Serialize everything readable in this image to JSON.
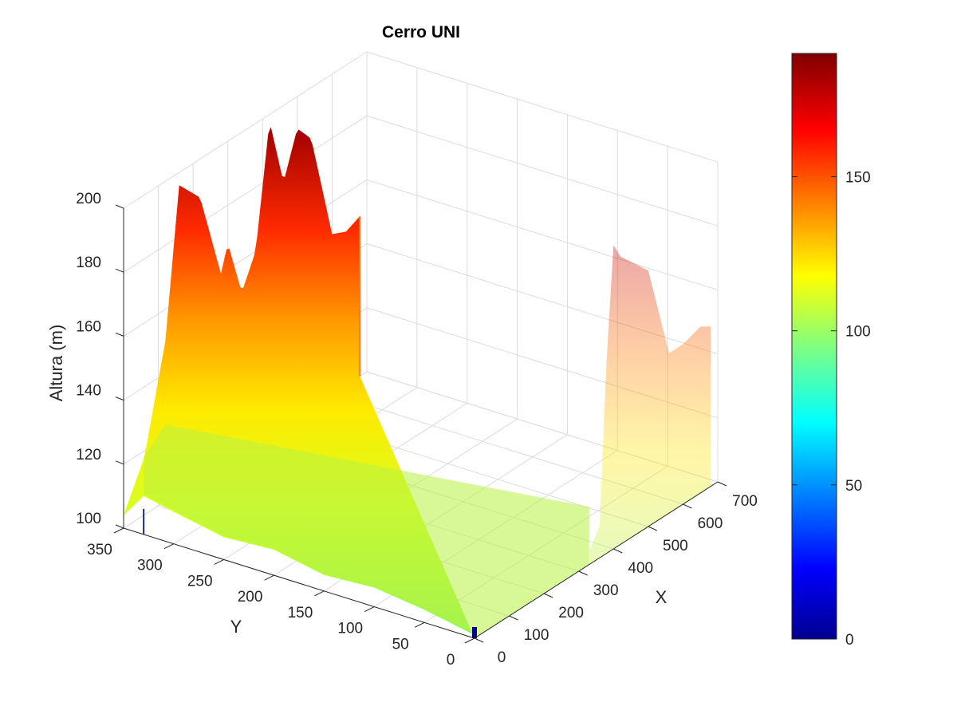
{
  "chart_data": {
    "type": "surface3d",
    "title": "Cerro UNI",
    "xlabel": "X",
    "ylabel": "Y",
    "zlabel": "Altura (m)",
    "xlim": [
      0,
      700
    ],
    "ylim": [
      0,
      350
    ],
    "zlim": [
      100,
      200
    ],
    "x_ticks": [
      "0",
      "100",
      "200",
      "300",
      "400",
      "500",
      "600",
      "700"
    ],
    "y_ticks": [
      "0",
      "50",
      "100",
      "150",
      "200",
      "250",
      "300",
      "350"
    ],
    "z_ticks": [
      "100",
      "120",
      "140",
      "160",
      "180",
      "200"
    ],
    "colorbar": {
      "colormap": "jet",
      "limits": [
        0,
        190
      ],
      "ticks": [
        "0",
        "50",
        "100",
        "150"
      ]
    },
    "grid": true,
    "front_edge_profile": {
      "y_at_x0": [
        0,
        50,
        100,
        150,
        200,
        250,
        300,
        330
      ],
      "z": [
        101,
        104,
        106,
        105,
        108,
        107,
        110,
        112
      ]
    },
    "back_edge_profile": {
      "x_at_y350": [
        0,
        60,
        120,
        160,
        220,
        280,
        300,
        340,
        380,
        420,
        460,
        500,
        540,
        600,
        640,
        680
      ],
      "z": [
        104,
        118,
        150,
        196,
        188,
        160,
        168,
        150,
        160,
        198,
        176,
        190,
        184,
        150,
        148,
        150
      ]
    },
    "peak_elevation": 198,
    "base_elevation": 102
  }
}
